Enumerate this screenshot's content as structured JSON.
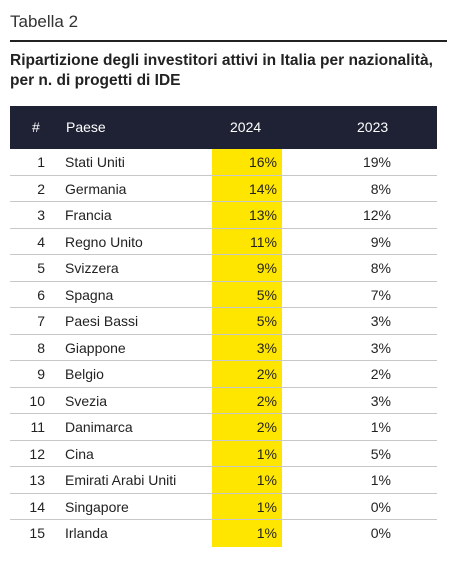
{
  "table_label": "Tabella 2",
  "title": "Ripartizione degli investitori attivi in Italia per nazionalità, per n. di progetti di IDE",
  "columns": {
    "num": "#",
    "paese": "Paese",
    "y2024": "2024",
    "y2023": "2023"
  },
  "highlight_color": "#ffe600",
  "header_color": "#1f2235",
  "rows": [
    {
      "num": "1",
      "paese": "Stati Uniti",
      "y2024": "16%",
      "y2023": "19%"
    },
    {
      "num": "2",
      "paese": "Germania",
      "y2024": "14%",
      "y2023": "8%"
    },
    {
      "num": "3",
      "paese": "Francia",
      "y2024": "13%",
      "y2023": "12%"
    },
    {
      "num": "4",
      "paese": "Regno Unito",
      "y2024": "11%",
      "y2023": "9%"
    },
    {
      "num": "5",
      "paese": "Svizzera",
      "y2024": "9%",
      "y2023": "8%"
    },
    {
      "num": "6",
      "paese": "Spagna",
      "y2024": "5%",
      "y2023": "7%"
    },
    {
      "num": "7",
      "paese": "Paesi Bassi",
      "y2024": "5%",
      "y2023": "3%"
    },
    {
      "num": "8",
      "paese": "Giappone",
      "y2024": "3%",
      "y2023": "3%"
    },
    {
      "num": "9",
      "paese": "Belgio",
      "y2024": "2%",
      "y2023": "2%"
    },
    {
      "num": "10",
      "paese": "Svezia",
      "y2024": "2%",
      "y2023": "3%"
    },
    {
      "num": "11",
      "paese": "Danimarca",
      "y2024": "2%",
      "y2023": "1%"
    },
    {
      "num": "12",
      "paese": "Cina",
      "y2024": "1%",
      "y2023": "5%"
    },
    {
      "num": "13",
      "paese": "Emirati Arabi Uniti",
      "y2024": "1%",
      "y2023": "1%"
    },
    {
      "num": "14",
      "paese": "Singapore",
      "y2024": "1%",
      "y2023": "0%"
    },
    {
      "num": "15",
      "paese": "Irlanda",
      "y2024": "1%",
      "y2023": "0%"
    }
  ]
}
